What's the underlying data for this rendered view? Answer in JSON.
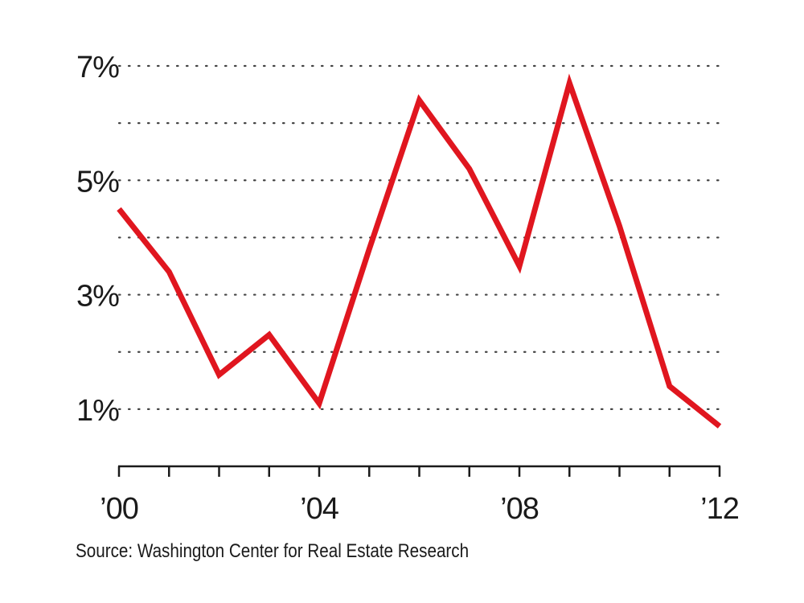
{
  "chart_data": {
    "type": "line",
    "title": "",
    "xlabel": "",
    "ylabel": "",
    "x": [
      2000,
      2001,
      2002,
      2003,
      2004,
      2005,
      2006,
      2007,
      2008,
      2009,
      2010,
      2011,
      2012
    ],
    "series": [
      {
        "name": "",
        "color": "#e0161f",
        "values": [
          4.5,
          3.4,
          1.6,
          2.3,
          1.1,
          3.8,
          6.4,
          5.2,
          3.5,
          6.7,
          4.2,
          1.4,
          0.7
        ]
      }
    ],
    "ylim": [
      0,
      7
    ],
    "xlim": [
      2000,
      2012
    ],
    "y_ticks": [
      {
        "value": 1,
        "label": "1%"
      },
      {
        "value": 3,
        "label": "3%"
      },
      {
        "value": 5,
        "label": "5%"
      },
      {
        "value": 7,
        "label": "7%"
      }
    ],
    "y_gridlines": [
      1,
      2,
      3,
      4,
      5,
      6,
      7
    ],
    "x_tick_labels": [
      {
        "value": 2000,
        "label": "’00"
      },
      {
        "value": 2004,
        "label": "’04"
      },
      {
        "value": 2008,
        "label": "’08"
      },
      {
        "value": 2012,
        "label": "’12"
      }
    ],
    "grid": "dotted horizontal",
    "source": "Source: Washington Center for Real Estate Research"
  }
}
